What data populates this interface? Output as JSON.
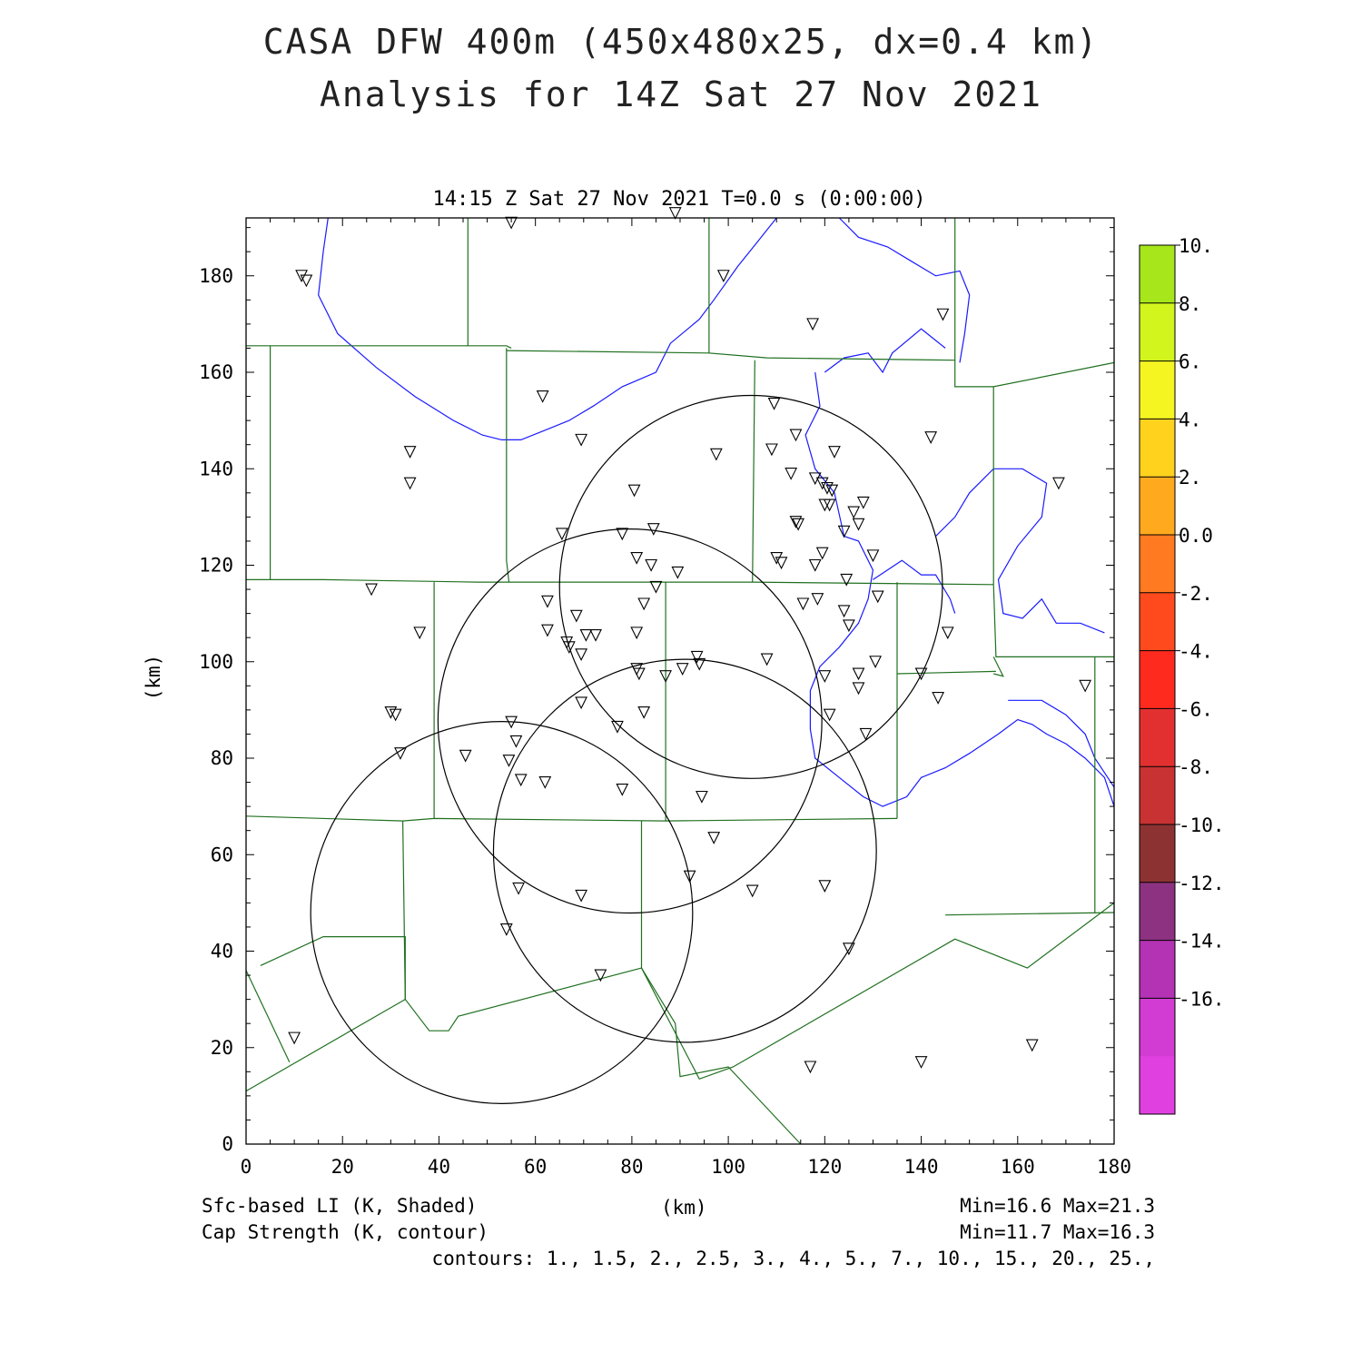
{
  "title": {
    "line1": "CASA DFW 400m (450x480x25, dx=0.4 km)",
    "line2": "Analysis for 14Z Sat 27 Nov 2021"
  },
  "subtitle": "14:15 Z Sat 27 Nov 2021   T=0.0 s (0:00:00)",
  "axes": {
    "xlabel": "(km)",
    "ylabel": "(km)",
    "xlim": [
      0,
      180
    ],
    "ylim": [
      0,
      192
    ],
    "xticks": [
      "0",
      "20",
      "40",
      "60",
      "80",
      "100",
      "120",
      "140",
      "160",
      "180"
    ],
    "yticks": [
      "0",
      "20",
      "40",
      "60",
      "80",
      "100",
      "120",
      "140",
      "160",
      "180"
    ]
  },
  "colorbar": {
    "labels": [
      "10.",
      "8.",
      "6.",
      "4.",
      "2.",
      "0.0",
      "-2.",
      "-4.",
      "-6.",
      "-8.",
      "-10.",
      "-12.",
      "-14.",
      "-16."
    ],
    "colors": [
      "#a6e61a",
      "#d2f51e",
      "#f5f522",
      "#ffd21e",
      "#ffaa1e",
      "#ff7a20",
      "#ff4a1e",
      "#ff2a1e",
      "#e23030",
      "#c83232",
      "#8c3232",
      "#8c3280",
      "#b432b4",
      "#d23cd2",
      "#e040e0"
    ]
  },
  "footer": {
    "left1": "Sfc-based LI (K, Shaded)",
    "left2": "Cap Strength (K, contour)",
    "center": "(km)",
    "right1": "Min=16.6 Max=21.3",
    "right2": "Min=11.7 Max=16.3",
    "contours": "contours: 1., 1.5, 2., 2.5, 3., 4., 5., 7., 10., 15., 20., 25.,"
  },
  "colors": {
    "county_lines": "#207020",
    "water": "#1a1aff",
    "radar_rings": "#000000"
  },
  "map_data": {
    "radar_rings_km": [
      {
        "cx": 104.7,
        "cy": 115.5,
        "r": 39.7
      },
      {
        "cx": 79.6,
        "cy": 87.7,
        "r": 39.8
      },
      {
        "cx": 91.0,
        "cy": 60.8,
        "r": 39.7
      },
      {
        "cx": 53.0,
        "cy": 48.0,
        "r": 39.6
      }
    ],
    "stations_km": [
      [
        11.5,
        180
      ],
      [
        12.5,
        179
      ],
      [
        55,
        191
      ],
      [
        89,
        193
      ],
      [
        99,
        180
      ],
      [
        117.5,
        170
      ],
      [
        144.5,
        172
      ],
      [
        61.5,
        155
      ],
      [
        69.5,
        146
      ],
      [
        109.5,
        153.5
      ],
      [
        34,
        143.5
      ],
      [
        34,
        137
      ],
      [
        109,
        144
      ],
      [
        114,
        147
      ],
      [
        97.5,
        143
      ],
      [
        122,
        143.5
      ],
      [
        142,
        146.5
      ],
      [
        168.5,
        137
      ],
      [
        113,
        139
      ],
      [
        118,
        138
      ],
      [
        119.5,
        137
      ],
      [
        120.5,
        136
      ],
      [
        121.5,
        135.5
      ],
      [
        80.5,
        135.5
      ],
      [
        120,
        132.5
      ],
      [
        121,
        132.5
      ],
      [
        128,
        133
      ],
      [
        126,
        131
      ],
      [
        114,
        129
      ],
      [
        114.5,
        128.5
      ],
      [
        127,
        128.5
      ],
      [
        65.5,
        126.5
      ],
      [
        78,
        126.5
      ],
      [
        84.5,
        127.5
      ],
      [
        124,
        127
      ],
      [
        81,
        121.5
      ],
      [
        84,
        120
      ],
      [
        110,
        121.5
      ],
      [
        111,
        120.5
      ],
      [
        119.5,
        122.5
      ],
      [
        118,
        120
      ],
      [
        130,
        122
      ],
      [
        89.5,
        118.5
      ],
      [
        124.5,
        117
      ],
      [
        26,
        115
      ],
      [
        85,
        115.5
      ],
      [
        62.5,
        112.5
      ],
      [
        82.5,
        112
      ],
      [
        115.5,
        112
      ],
      [
        118.5,
        113
      ],
      [
        131,
        113.5
      ],
      [
        124,
        110.5
      ],
      [
        68.5,
        109.5
      ],
      [
        62.5,
        106.5
      ],
      [
        36,
        106
      ],
      [
        70.5,
        105.5
      ],
      [
        72.5,
        105.5
      ],
      [
        81,
        106
      ],
      [
        125,
        107.5
      ],
      [
        145.5,
        106
      ],
      [
        66.5,
        104
      ],
      [
        67,
        103
      ],
      [
        69.5,
        101.5
      ],
      [
        93.5,
        101
      ],
      [
        94,
        99.5
      ],
      [
        108,
        100.5
      ],
      [
        130.5,
        100
      ],
      [
        81,
        98.5
      ],
      [
        81.5,
        97.5
      ],
      [
        87,
        97
      ],
      [
        90.5,
        98.5
      ],
      [
        120,
        97
      ],
      [
        127,
        97.5
      ],
      [
        140,
        97.5
      ],
      [
        127,
        94.5
      ],
      [
        174,
        95
      ],
      [
        69.5,
        91.5
      ],
      [
        82.5,
        89.5
      ],
      [
        121,
        89
      ],
      [
        143.5,
        92.5
      ],
      [
        30,
        89.5
      ],
      [
        31,
        89
      ],
      [
        55,
        87.5
      ],
      [
        77,
        86.5
      ],
      [
        128.5,
        85
      ],
      [
        56,
        83.5
      ],
      [
        32,
        81
      ],
      [
        45.5,
        80.5
      ],
      [
        54.5,
        79.5
      ],
      [
        57,
        75.5
      ],
      [
        62,
        75
      ],
      [
        78,
        73.5
      ],
      [
        94.5,
        72
      ],
      [
        97,
        63.5
      ],
      [
        92,
        55.5
      ],
      [
        56.5,
        53
      ],
      [
        69.5,
        51.5
      ],
      [
        105,
        52.5
      ],
      [
        120,
        53.5
      ],
      [
        54,
        44.5
      ],
      [
        125,
        40.5
      ],
      [
        73.5,
        35
      ],
      [
        10,
        22
      ],
      [
        163,
        20.5
      ],
      [
        117,
        16
      ],
      [
        140,
        17
      ]
    ],
    "county_lines_km": [
      [
        [
          0,
          165.5
        ],
        [
          54,
          165.5
        ],
        [
          55,
          165
        ]
      ],
      [
        [
          5,
          165.5
        ],
        [
          5,
          117
        ]
      ],
      [
        [
          0,
          117
        ],
        [
          16,
          117
        ],
        [
          48,
          116.5
        ],
        [
          70,
          116.5
        ],
        [
          105,
          116.5
        ],
        [
          155,
          116
        ]
      ],
      [
        [
          46,
          192
        ],
        [
          46,
          165.5
        ]
      ],
      [
        [
          96,
          192
        ],
        [
          96,
          164
        ],
        [
          108,
          163
        ],
        [
          147,
          162.5
        ],
        [
          147,
          192
        ]
      ],
      [
        [
          54,
          165
        ],
        [
          54,
          121
        ],
        [
          54.5,
          116.5
        ]
      ],
      [
        [
          54,
          164.5
        ],
        [
          96,
          164
        ]
      ],
      [
        [
          105.5,
          162.5
        ],
        [
          105,
          116.5
        ]
      ],
      [
        [
          147,
          162.5
        ],
        [
          147,
          157
        ],
        [
          155,
          157
        ],
        [
          180,
          162
        ]
      ],
      [
        [
          155,
          157
        ],
        [
          155,
          116
        ],
        [
          155.5,
          101
        ],
        [
          180,
          101
        ]
      ],
      [
        [
          39,
          116.5
        ],
        [
          39,
          67.5
        ]
      ],
      [
        [
          87,
          116.5
        ],
        [
          87,
          67
        ]
      ],
      [
        [
          0,
          68
        ],
        [
          32.5,
          67
        ],
        [
          39,
          67.5
        ],
        [
          87,
          67
        ],
        [
          135,
          67.5
        ]
      ],
      [
        [
          135,
          116.5
        ],
        [
          135,
          67.5
        ]
      ],
      [
        [
          135,
          97.5
        ],
        [
          155.5,
          98
        ]
      ],
      [
        [
          32.5,
          67
        ],
        [
          33,
          30
        ]
      ],
      [
        [
          82,
          67
        ],
        [
          82,
          36.5
        ]
      ],
      [
        [
          0,
          11
        ],
        [
          33,
          30
        ]
      ],
      [
        [
          3,
          37
        ],
        [
          16,
          43
        ],
        [
          33,
          43
        ],
        [
          33,
          30
        ],
        [
          38,
          23.5
        ],
        [
          42,
          23.5
        ],
        [
          44,
          26.5
        ],
        [
          82,
          36.5
        ],
        [
          94,
          13.5
        ],
        [
          101,
          16
        ],
        [
          147,
          42.5
        ],
        [
          162,
          36.5
        ],
        [
          180,
          50
        ]
      ],
      [
        [
          0,
          36
        ],
        [
          9,
          17
        ]
      ],
      [
        [
          82,
          36.5
        ],
        [
          89,
          25
        ],
        [
          90,
          14
        ],
        [
          100,
          16
        ],
        [
          115,
          0
        ]
      ],
      [
        [
          155,
          97.5
        ],
        [
          157,
          97
        ],
        [
          155,
          101
        ]
      ],
      [
        [
          176,
          101
        ],
        [
          176,
          48
        ]
      ],
      [
        [
          145,
          47.5
        ],
        [
          180,
          48
        ]
      ]
    ],
    "water_lines_km": [
      [
        [
          17,
          192
        ],
        [
          16,
          185
        ],
        [
          15,
          176
        ],
        [
          19,
          168
        ],
        [
          27,
          161
        ],
        [
          35,
          155
        ],
        [
          43,
          150
        ],
        [
          49,
          147
        ],
        [
          53,
          146
        ],
        [
          57,
          146
        ],
        [
          62,
          148
        ],
        [
          67,
          150
        ],
        [
          72,
          153
        ],
        [
          78,
          157
        ],
        [
          85,
          160
        ],
        [
          88,
          166
        ],
        [
          94,
          171
        ],
        [
          97,
          175
        ],
        [
          102,
          182
        ],
        [
          106,
          187
        ],
        [
          110,
          192
        ]
      ],
      [
        [
          123,
          192
        ],
        [
          127,
          188
        ],
        [
          133,
          186
        ],
        [
          138,
          183
        ],
        [
          143,
          180
        ],
        [
          148,
          181
        ],
        [
          150,
          176
        ],
        [
          149,
          168
        ],
        [
          148,
          162
        ]
      ],
      [
        [
          120,
          160
        ],
        [
          124,
          163
        ],
        [
          129,
          164
        ],
        [
          132,
          160
        ],
        [
          134,
          164
        ],
        [
          140,
          169
        ],
        [
          145,
          165
        ]
      ],
      [
        [
          118,
          160
        ],
        [
          119,
          153
        ],
        [
          116,
          147
        ],
        [
          118,
          140
        ],
        [
          122,
          135
        ],
        [
          124,
          126
        ],
        [
          127,
          125
        ],
        [
          130,
          119
        ],
        [
          129,
          113
        ],
        [
          127,
          108
        ],
        [
          123,
          103
        ],
        [
          119,
          99
        ],
        [
          117,
          94
        ],
        [
          117,
          86
        ],
        [
          118,
          80
        ],
        [
          123,
          76
        ],
        [
          128,
          72
        ],
        [
          132,
          70
        ],
        [
          137,
          72
        ],
        [
          140,
          76
        ],
        [
          145,
          78
        ],
        [
          150,
          81
        ],
        [
          156,
          85
        ],
        [
          160,
          88
        ],
        [
          163,
          87
        ],
        [
          166,
          85
        ],
        [
          170,
          83
        ],
        [
          174,
          80
        ],
        [
          178,
          76
        ],
        [
          180,
          70
        ]
      ],
      [
        [
          130,
          117
        ],
        [
          136,
          121
        ],
        [
          140,
          118
        ],
        [
          143,
          118
        ],
        [
          146,
          113
        ],
        [
          147,
          110
        ]
      ],
      [
        [
          143,
          126
        ],
        [
          147,
          130
        ],
        [
          150,
          135
        ],
        [
          155,
          140
        ],
        [
          161,
          140
        ],
        [
          166,
          137
        ],
        [
          165,
          130
        ],
        [
          160,
          124
        ],
        [
          156,
          117
        ],
        [
          157,
          110
        ],
        [
          161,
          109
        ],
        [
          165,
          113
        ],
        [
          168,
          108
        ],
        [
          173,
          108
        ],
        [
          178,
          106
        ]
      ],
      [
        [
          158,
          92
        ],
        [
          165,
          92
        ],
        [
          170,
          89
        ],
        [
          174,
          85
        ],
        [
          176,
          80
        ],
        [
          178,
          77
        ],
        [
          180,
          74
        ]
      ]
    ]
  }
}
